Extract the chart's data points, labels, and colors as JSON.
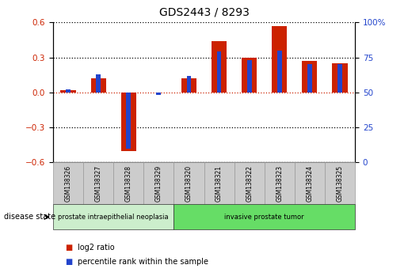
{
  "title": "GDS2443 / 8293",
  "samples": [
    "GSM138326",
    "GSM138327",
    "GSM138328",
    "GSM138329",
    "GSM138320",
    "GSM138321",
    "GSM138322",
    "GSM138323",
    "GSM138324",
    "GSM138325"
  ],
  "log2_ratio": [
    0.02,
    0.12,
    -0.5,
    0.0,
    0.12,
    0.44,
    0.3,
    0.57,
    0.27,
    0.25
  ],
  "percentile": [
    52,
    63,
    10,
    48,
    62,
    79,
    73,
    80,
    70,
    70
  ],
  "red_color": "#cc2200",
  "blue_color": "#2244cc",
  "ylim_left": [
    -0.6,
    0.6
  ],
  "ylim_right": [
    0,
    100
  ],
  "yticks_left": [
    -0.6,
    -0.3,
    0.0,
    0.3,
    0.6
  ],
  "yticks_right": [
    0,
    25,
    50,
    75,
    100
  ],
  "ytick_labels_right": [
    "0",
    "25",
    "50",
    "75",
    "100%"
  ],
  "groups": [
    {
      "label": "prostate intraepithelial neoplasia",
      "indices": [
        0,
        1,
        2,
        3
      ],
      "color": "#88ee88"
    },
    {
      "label": "invasive prostate tumor",
      "indices": [
        4,
        5,
        6,
        7,
        8,
        9
      ],
      "color": "#66dd66"
    }
  ],
  "disease_state_label": "disease state",
  "legend": [
    {
      "label": "log2 ratio",
      "color": "#cc2200"
    },
    {
      "label": "percentile rank within the sample",
      "color": "#2244cc"
    }
  ],
  "background_color": "#ffffff",
  "dotted_line_color": "#cc2200",
  "dotted_grid_color": "#000000"
}
